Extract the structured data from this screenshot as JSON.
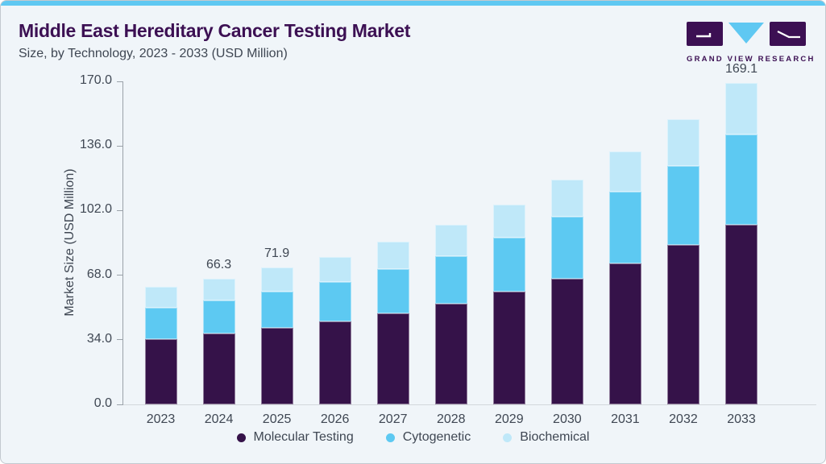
{
  "header": {
    "title": "Middle East Hereditary Cancer Testing Market",
    "subtitle": "Size, by Technology, 2023 - 2033 (USD Million)",
    "logo_text": "GRAND VIEW RESEARCH"
  },
  "colors": {
    "accent_strip": "#5fc8f2",
    "title_purple": "#3c1053",
    "text_gray": "#3f4753",
    "card_background": "#f0f5f9",
    "axis_gray": "#9aa1a9",
    "molecular_testing": "#351249",
    "cytogenetic": "#5dc9f2",
    "biochemical": "#bfe8f9"
  },
  "chart_data": {
    "type": "bar",
    "stacked": true,
    "title": "Middle East Hereditary Cancer Testing Market Size, by Technology, 2023 - 2033 (USD Million)",
    "xlabel": "",
    "ylabel": "Market Size (USD Million)",
    "ylim": [
      0,
      170
    ],
    "yticks": [
      "0.0",
      "34.0",
      "68.0",
      "102.0",
      "136.0",
      "170.0"
    ],
    "grid": false,
    "legend_position": "bottom",
    "categories": [
      "2023",
      "2024",
      "2025",
      "2026",
      "2027",
      "2028",
      "2029",
      "2030",
      "2031",
      "2032",
      "2033"
    ],
    "series": [
      {
        "name": "Molecular Testing",
        "color": "#351249",
        "values": [
          34.3,
          37.2,
          40.1,
          43.6,
          47.8,
          52.8,
          59.4,
          66.1,
          74.2,
          83.8,
          94.4
        ]
      },
      {
        "name": "Cytogenetic",
        "color": "#5dc9f2",
        "values": [
          16.5,
          17.3,
          19.1,
          20.8,
          23.4,
          25.3,
          28.4,
          32.5,
          37.9,
          41.9,
          47.8
        ]
      },
      {
        "name": "Biochemical",
        "color": "#bfe8f9",
        "values": [
          11.0,
          11.8,
          12.7,
          13.4,
          14.5,
          16.5,
          17.3,
          19.8,
          21.2,
          24.4,
          26.9
        ]
      }
    ],
    "totals": [
      61.8,
      66.3,
      71.9,
      77.8,
      85.7,
      94.6,
      105.1,
      118.4,
      133.3,
      150.1,
      169.1
    ],
    "data_labels": [
      {
        "category": "2024",
        "text": "66.3"
      },
      {
        "category": "2025",
        "text": "71.9"
      },
      {
        "category": "2033",
        "text": "169.1"
      }
    ]
  }
}
